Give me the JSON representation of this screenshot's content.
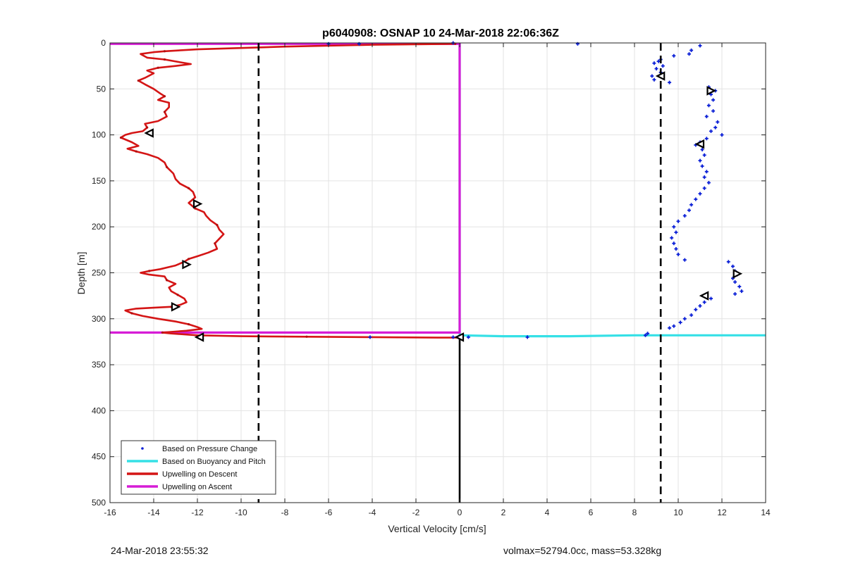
{
  "chart_data": {
    "type": "scatter",
    "title": "p6040908: OSNAP 10 24-Mar-2018 22:06:36Z",
    "xlabel": "Vertical Velocity [cm/s]",
    "ylabel": "Depth [m]",
    "xlim": [
      -16,
      14
    ],
    "ylim": [
      0,
      500
    ],
    "y_reversed": true,
    "grid": true,
    "xticks": [
      -16,
      -14,
      -12,
      -10,
      -8,
      -6,
      -4,
      -2,
      0,
      2,
      4,
      6,
      8,
      10,
      12,
      14
    ],
    "yticks": [
      0,
      50,
      100,
      150,
      200,
      250,
      300,
      350,
      400,
      450,
      500
    ],
    "legend_position": "bottom-left",
    "reference_lines": [
      {
        "orientation": "vertical",
        "x": -9.2,
        "style": "dashed",
        "color": "#000000"
      },
      {
        "orientation": "vertical",
        "x": 9.2,
        "style": "dashed",
        "color": "#000000"
      },
      {
        "orientation": "vertical",
        "x": 0,
        "y_range": [
          320,
          500
        ],
        "style": "solid",
        "color": "#000000"
      }
    ],
    "series": [
      {
        "name": "Based on Pressure Change",
        "marker": "dot",
        "color": "#0a1fd6",
        "points": [
          [
            5.4,
            1
          ],
          [
            11.0,
            3
          ],
          [
            10.6,
            8
          ],
          [
            10.5,
            12
          ],
          [
            9.8,
            14
          ],
          [
            9.2,
            18
          ],
          [
            9.1,
            20
          ],
          [
            8.9,
            22
          ],
          [
            9.3,
            25
          ],
          [
            9.0,
            28
          ],
          [
            9.2,
            32
          ],
          [
            8.8,
            36
          ],
          [
            9.3,
            38
          ],
          [
            8.9,
            40
          ],
          [
            9.6,
            43
          ],
          [
            11.4,
            48
          ],
          [
            11.7,
            52
          ],
          [
            11.5,
            56
          ],
          [
            11.6,
            62
          ],
          [
            11.4,
            68
          ],
          [
            11.6,
            74
          ],
          [
            11.3,
            80
          ],
          [
            11.8,
            86
          ],
          [
            11.7,
            92
          ],
          [
            11.5,
            96
          ],
          [
            12.0,
            100
          ],
          [
            11.3,
            104
          ],
          [
            11.0,
            108
          ],
          [
            10.8,
            111
          ],
          [
            11.1,
            116
          ],
          [
            11.2,
            122
          ],
          [
            11.0,
            128
          ],
          [
            11.1,
            134
          ],
          [
            11.3,
            140
          ],
          [
            11.2,
            146
          ],
          [
            11.4,
            152
          ],
          [
            11.2,
            158
          ],
          [
            11.0,
            164
          ],
          [
            10.8,
            170
          ],
          [
            10.6,
            176
          ],
          [
            10.5,
            182
          ],
          [
            10.3,
            188
          ],
          [
            10.0,
            194
          ],
          [
            9.8,
            200
          ],
          [
            9.9,
            206
          ],
          [
            9.7,
            212
          ],
          [
            9.8,
            218
          ],
          [
            9.9,
            224
          ],
          [
            10.0,
            230
          ],
          [
            10.3,
            236
          ],
          [
            12.3,
            238
          ],
          [
            12.5,
            243
          ],
          [
            12.6,
            248
          ],
          [
            12.7,
            252
          ],
          [
            12.5,
            256
          ],
          [
            12.6,
            260
          ],
          [
            12.8,
            265
          ],
          [
            12.9,
            270
          ],
          [
            12.6,
            273
          ],
          [
            11.5,
            278
          ],
          [
            11.2,
            282
          ],
          [
            11.0,
            286
          ],
          [
            10.8,
            290
          ],
          [
            10.6,
            296
          ],
          [
            10.3,
            300
          ],
          [
            10.1,
            304
          ],
          [
            9.8,
            308
          ],
          [
            9.6,
            310
          ],
          [
            8.6,
            316
          ],
          [
            8.5,
            318
          ],
          [
            3.1,
            320
          ],
          [
            0.4,
            320
          ],
          [
            0.0,
            320
          ],
          [
            -0.3,
            320
          ],
          [
            -4.1,
            320
          ],
          [
            -0.3,
            0
          ],
          [
            -4.6,
            1
          ],
          [
            -6.0,
            1
          ]
        ]
      },
      {
        "name": "Based on Buoyancy and Pitch",
        "marker": "line",
        "color": "#35e0e6",
        "points": [
          [
            0,
            0
          ],
          [
            0,
            318
          ],
          [
            2,
            319
          ],
          [
            5,
            319
          ],
          [
            8,
            318
          ],
          [
            10,
            318
          ],
          [
            14,
            318
          ]
        ]
      },
      {
        "name": "Upwelling on Descent",
        "marker": "line",
        "color": "#d41515",
        "points": [
          [
            -0.2,
            1
          ],
          [
            -4,
            2
          ],
          [
            -8,
            4
          ],
          [
            -12,
            7
          ],
          [
            -13.5,
            9
          ],
          [
            -14,
            10
          ],
          [
            -14.6,
            12
          ],
          [
            -14.3,
            16
          ],
          [
            -13.5,
            18
          ],
          [
            -12.8,
            21
          ],
          [
            -12.3,
            23
          ],
          [
            -13.0,
            25
          ],
          [
            -13.8,
            27
          ],
          [
            -14.3,
            30
          ],
          [
            -14.0,
            33
          ],
          [
            -14.4,
            38
          ],
          [
            -14.7,
            41
          ],
          [
            -14.4,
            45
          ],
          [
            -14.0,
            50
          ],
          [
            -13.7,
            55
          ],
          [
            -13.5,
            58
          ],
          [
            -13.8,
            62
          ],
          [
            -13.3,
            65
          ],
          [
            -13.3,
            70
          ],
          [
            -13.5,
            75
          ],
          [
            -13.4,
            80
          ],
          [
            -13.8,
            85
          ],
          [
            -14.4,
            88
          ],
          [
            -14.3,
            92
          ],
          [
            -14.5,
            96
          ],
          [
            -15.0,
            98
          ],
          [
            -15.3,
            100
          ],
          [
            -15.5,
            103
          ],
          [
            -15.0,
            108
          ],
          [
            -14.7,
            112
          ],
          [
            -15.2,
            115
          ],
          [
            -14.8,
            118
          ],
          [
            -14.3,
            121
          ],
          [
            -13.8,
            125
          ],
          [
            -13.5,
            130
          ],
          [
            -13.4,
            135
          ],
          [
            -13.1,
            142
          ],
          [
            -13.0,
            148
          ],
          [
            -12.8,
            153
          ],
          [
            -12.4,
            158
          ],
          [
            -12.2,
            162
          ],
          [
            -12.1,
            168
          ],
          [
            -12.4,
            174
          ],
          [
            -12.1,
            180
          ],
          [
            -11.7,
            184
          ],
          [
            -11.6,
            188
          ],
          [
            -11.4,
            193
          ],
          [
            -11.1,
            198
          ],
          [
            -11.0,
            203
          ],
          [
            -10.8,
            208
          ],
          [
            -11.0,
            213
          ],
          [
            -11.2,
            218
          ],
          [
            -11.1,
            224
          ],
          [
            -11.5,
            228
          ],
          [
            -12.0,
            232
          ],
          [
            -12.4,
            235
          ],
          [
            -12.6,
            238
          ],
          [
            -13.0,
            242
          ],
          [
            -13.7,
            246
          ],
          [
            -14.2,
            248
          ],
          [
            -14.6,
            250
          ],
          [
            -14.2,
            252
          ],
          [
            -13.5,
            254
          ],
          [
            -13.4,
            258
          ],
          [
            -13.0,
            262
          ],
          [
            -13.3,
            266
          ],
          [
            -13.2,
            270
          ],
          [
            -12.9,
            274
          ],
          [
            -12.6,
            278
          ],
          [
            -12.5,
            282
          ],
          [
            -12.8,
            285
          ],
          [
            -13.2,
            287
          ],
          [
            -14.0,
            288
          ],
          [
            -14.8,
            289
          ],
          [
            -15.3,
            291
          ],
          [
            -15.0,
            294
          ],
          [
            -14.5,
            297
          ],
          [
            -13.8,
            300
          ],
          [
            -13.0,
            303
          ],
          [
            -12.4,
            306
          ],
          [
            -12.0,
            309
          ],
          [
            -11.8,
            311
          ],
          [
            -12.5,
            313
          ],
          [
            -13.6,
            315
          ],
          [
            -13.2,
            316
          ],
          [
            -12.0,
            318
          ],
          [
            -10.0,
            319
          ],
          [
            -7.0,
            319.5
          ],
          [
            -4.0,
            320
          ],
          [
            -1.0,
            320.5
          ],
          [
            0,
            320.5
          ]
        ]
      },
      {
        "name": "Upwelling on Ascent",
        "marker": "line",
        "color": "#d61cd6",
        "points": [
          [
            -16,
            315
          ],
          [
            0,
            315
          ],
          [
            0,
            1
          ],
          [
            -16,
            1
          ]
        ]
      }
    ],
    "triangle_markers": [
      {
        "x": -14.2,
        "y": 98,
        "direction": "left"
      },
      {
        "x": -12.0,
        "y": 175,
        "direction": "right"
      },
      {
        "x": -12.5,
        "y": 241,
        "direction": "right"
      },
      {
        "x": -13.0,
        "y": 287,
        "direction": "right"
      },
      {
        "x": -11.9,
        "y": 320,
        "direction": "left"
      },
      {
        "x": 0.0,
        "y": 320,
        "direction": "left"
      },
      {
        "x": 9.2,
        "y": 36,
        "direction": "left"
      },
      {
        "x": 11.5,
        "y": 52,
        "direction": "right"
      },
      {
        "x": 11.0,
        "y": 110,
        "direction": "left"
      },
      {
        "x": 12.7,
        "y": 251,
        "direction": "right"
      },
      {
        "x": 11.2,
        "y": 275,
        "direction": "left"
      }
    ]
  },
  "footer": {
    "left": "24-Mar-2018 23:55:32",
    "right": "volmax=52794.0cc, mass=53.328kg"
  }
}
